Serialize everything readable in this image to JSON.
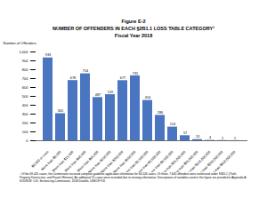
{
  "chart_data": {
    "type": "bar",
    "figure_label": "Figure E-2",
    "title": "NUMBER OF OFFENDERS IN EACH §2B1.1 LOSS TABLE CATEGORY¹",
    "subtitle": "Fiscal Year 2018",
    "y_label": "Number of Offenders",
    "categories": [
      "$6,500 or Less",
      "More than $6,500",
      "More than $15,000",
      "More than $40,000",
      "More than $95,000",
      "More than $150,000",
      "More than $250,000",
      "More than $550,000",
      "More than $1,500,000",
      "More than $3,500,000",
      "More than $9,500,000",
      "More than $25,000,000",
      "More than $65,000,000",
      "More than $150,000,000",
      "More than $250,000,000",
      "More than $550,000,000"
    ],
    "values": [
      933,
      305,
      678,
      754,
      487,
      519,
      677,
      731,
      454,
      286,
      154,
      57,
      13,
      4,
      2,
      1
    ],
    "color": "#4a76c1",
    "ylim": [
      0,
      1000
    ],
    "yticks": [
      0,
      100,
      200,
      300,
      400,
      500,
      600,
      700,
      800,
      900,
      {
        "value": 1000,
        "label": "1,000"
      }
    ],
    "grid": false,
    "data_labels": true,
    "footnote": "¹ Of the 69,425 cases, the Commission received complete guideline application information for 64,526 cases. Of these, 7,605 offenders were sentenced under §2B1.1 (Theft, Property Destruction, and Fraud Offenses). An additional 51 cases were excluded due to missing information. Descriptions of variables used in this figure are provided in Appendix A.",
    "source": "SOURCE: U.S. Sentencing Commission, 2018 Datafile, USSCFY18."
  }
}
